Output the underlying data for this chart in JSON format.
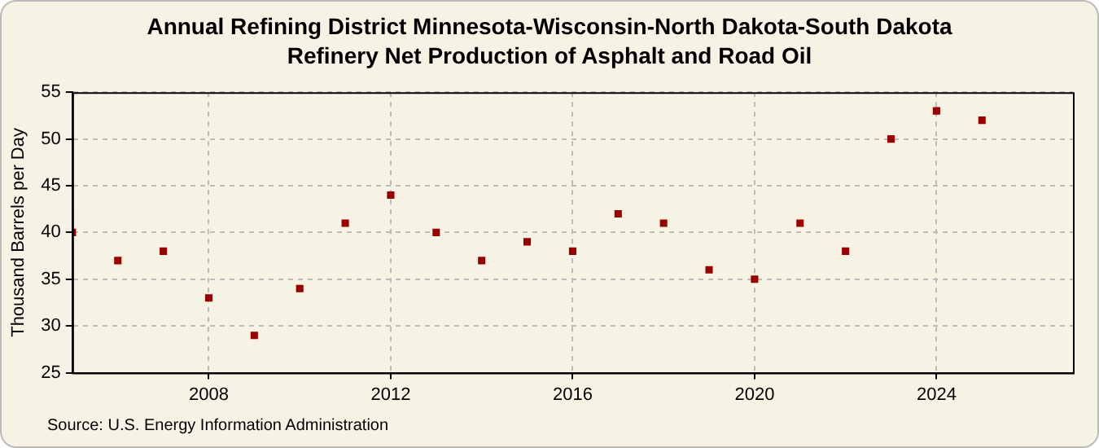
{
  "chart_data": {
    "type": "scatter",
    "title": "Annual Refining District Minnesota-Wisconsin-North Dakota-South Dakota Refinery Net Production of Asphalt and Road Oil",
    "ylabel": "Thousand Barrels per Day",
    "annotations": [
      "Source: U.S. Energy Information Administration"
    ],
    "x": [
      2005,
      2006,
      2007,
      2008,
      2009,
      2010,
      2011,
      2012,
      2013,
      2014,
      2015,
      2016,
      2017,
      2018,
      2019,
      2020,
      2021,
      2022,
      2023,
      2024,
      2025
    ],
    "series": [
      {
        "color": "#990000",
        "values": [
          40,
          37,
          38,
          33,
          29,
          34,
          41,
          44,
          40,
          37,
          39,
          38,
          42,
          41,
          36,
          35,
          41,
          38,
          50,
          53,
          52
        ]
      }
    ],
    "xlim": [
      2005,
      2027
    ],
    "xticks": [
      2008,
      2012,
      2016,
      2020,
      2024
    ],
    "ylim": [
      25,
      55
    ],
    "yticks": [
      25,
      30,
      35,
      40,
      45,
      50,
      55
    ],
    "grid": true,
    "marker": "square",
    "legend": false
  }
}
